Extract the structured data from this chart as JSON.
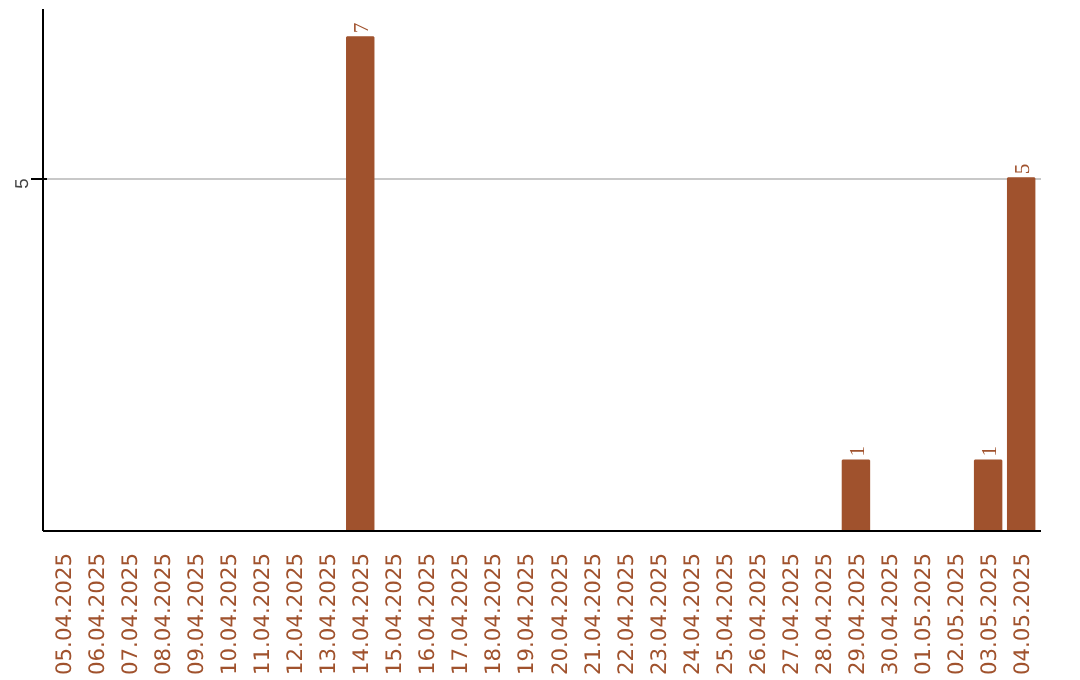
{
  "chart_data": {
    "type": "bar",
    "categories": [
      "05.04.2025",
      "06.04.2025",
      "07.04.2025",
      "08.04.2025",
      "09.04.2025",
      "10.04.2025",
      "11.04.2025",
      "12.04.2025",
      "13.04.2025",
      "14.04.2025",
      "15.04.2025",
      "16.04.2025",
      "17.04.2025",
      "18.04.2025",
      "19.04.2025",
      "20.04.2025",
      "21.04.2025",
      "22.04.2025",
      "23.04.2025",
      "24.04.2025",
      "25.04.2025",
      "26.04.2025",
      "27.04.2025",
      "28.04.2025",
      "29.04.2025",
      "30.04.2025",
      "01.05.2025",
      "02.05.2025",
      "03.05.2025",
      "04.05.2025"
    ],
    "values": [
      0,
      0,
      0,
      0,
      0,
      0,
      0,
      0,
      0,
      7,
      0,
      0,
      0,
      0,
      0,
      0,
      0,
      0,
      0,
      0,
      0,
      0,
      0,
      0,
      1,
      0,
      0,
      0,
      1,
      5
    ],
    "value_labels": [
      null,
      null,
      null,
      null,
      null,
      null,
      null,
      null,
      null,
      "7",
      null,
      null,
      null,
      null,
      null,
      null,
      null,
      null,
      null,
      null,
      null,
      null,
      null,
      null,
      "1",
      null,
      null,
      null,
      "1",
      "5"
    ],
    "color": "#a0522d",
    "ylim": [
      0,
      7.4
    ],
    "yticks": [
      5
    ],
    "grid": "y"
  }
}
